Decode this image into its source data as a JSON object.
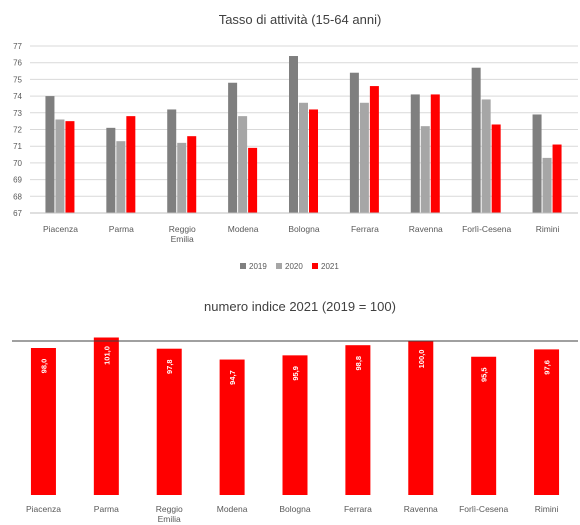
{
  "chart_data": [
    {
      "type": "bar",
      "title": "Tasso di attività (15-64 anni)",
      "categories": [
        "Piacenza",
        "Parma",
        "Reggio Emilia",
        "Modena",
        "Bologna",
        "Ferrara",
        "Ravenna",
        "Forlì-Cesena",
        "Rimini"
      ],
      "series": [
        {
          "name": "2019",
          "color": "#7f7f7f",
          "values": [
            74.0,
            72.1,
            73.2,
            74.8,
            76.4,
            75.4,
            74.1,
            75.7,
            72.9
          ]
        },
        {
          "name": "2020",
          "color": "#a6a6a6",
          "values": [
            72.6,
            71.3,
            71.2,
            72.8,
            73.6,
            73.6,
            72.2,
            73.8,
            70.3
          ]
        },
        {
          "name": "2021",
          "color": "#ff0000",
          "values": [
            72.5,
            72.8,
            71.6,
            70.9,
            73.2,
            74.6,
            74.1,
            72.3,
            71.1
          ]
        }
      ],
      "ylim": [
        67,
        77
      ],
      "yticks": [
        "67",
        "68",
        "69",
        "70",
        "71",
        "72",
        "73",
        "74",
        "75",
        "76",
        "77"
      ],
      "grid": true,
      "legend_position": "bottom"
    },
    {
      "type": "bar",
      "title": "numero indice 2021 (2019 = 100)",
      "categories": [
        "Piacenza",
        "Parma",
        "Reggio Emilia",
        "Modena",
        "Bologna",
        "Ferrara",
        "Ravenna",
        "Forlì-Cesena",
        "Rimini"
      ],
      "values": [
        98.0,
        101.0,
        97.8,
        94.7,
        95.9,
        98.8,
        100.0,
        95.5,
        97.6
      ],
      "value_labels": [
        "98,0",
        "101,0",
        "97,8",
        "94,7",
        "95,9",
        "98,8",
        "100,0",
        "95,5",
        "97,6"
      ],
      "color": "#ff0000",
      "reference_line": 100
    }
  ]
}
